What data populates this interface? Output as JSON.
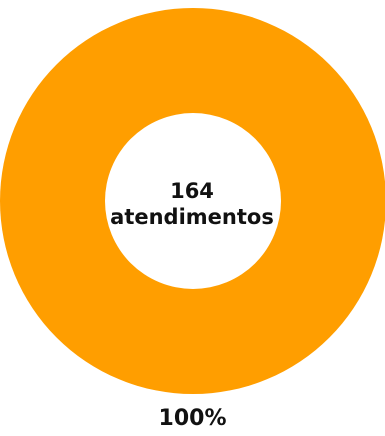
{
  "chart_data": {
    "type": "pie",
    "variant": "donut",
    "slices": [
      {
        "value": 164,
        "percent_label": "100%",
        "color": "#FF9E00"
      }
    ],
    "center_text": {
      "value": "164",
      "unit": "atendimentos"
    },
    "legend": "none",
    "colors": {
      "slice": "#FF9E00",
      "hole": "#FFFFFF",
      "text": "#111111"
    }
  }
}
